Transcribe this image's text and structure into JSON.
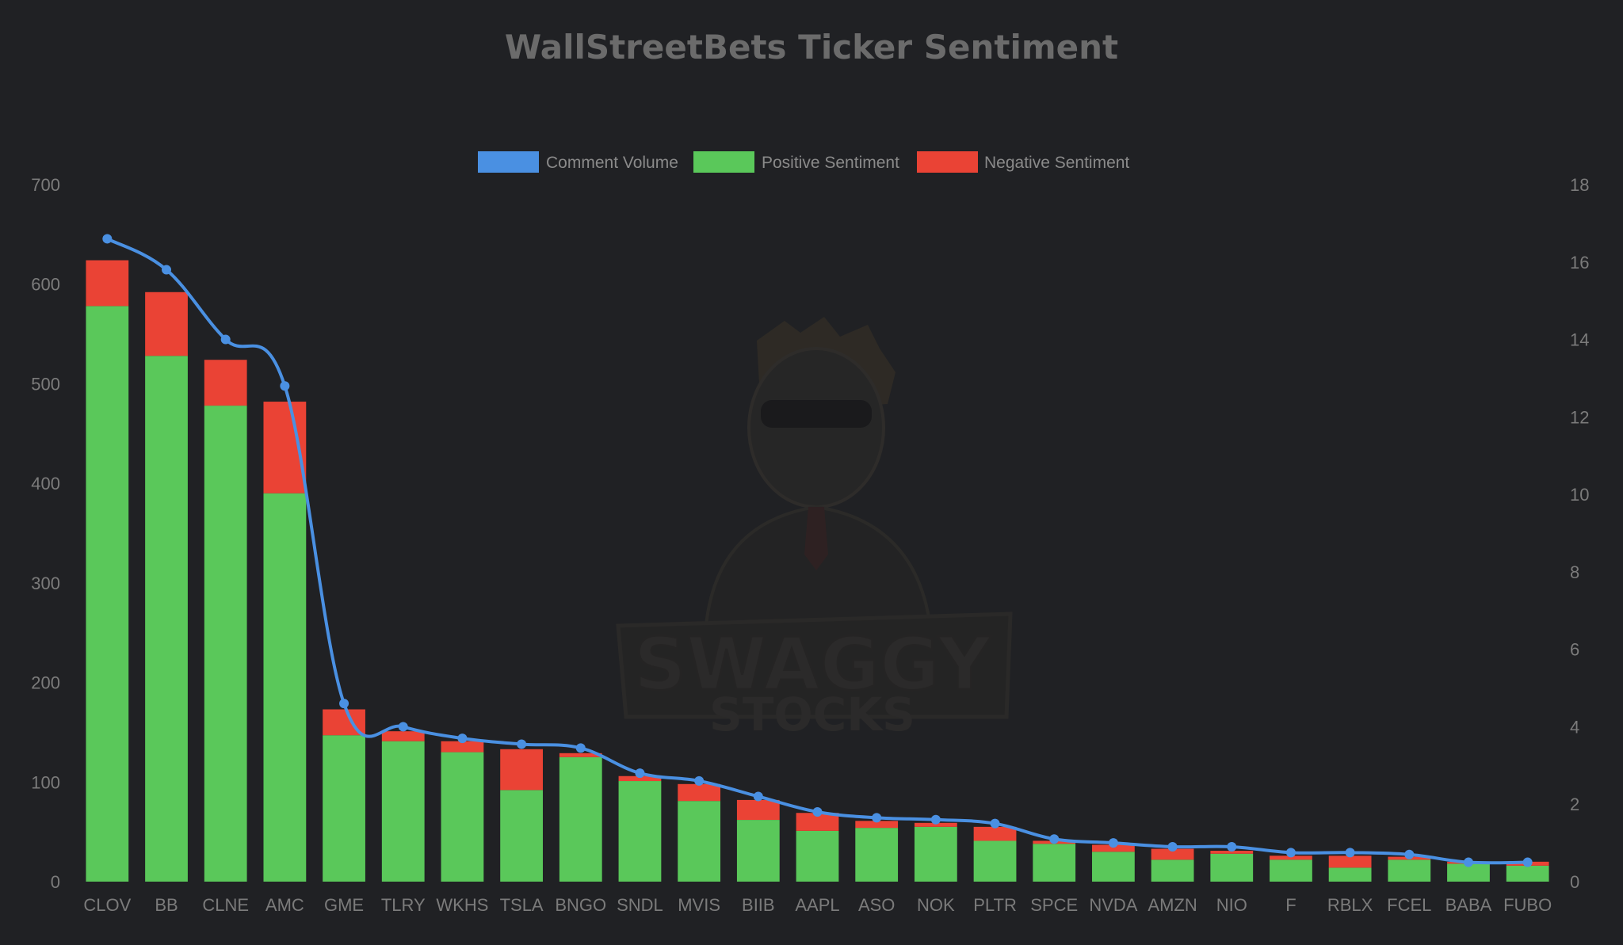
{
  "chart_data": {
    "type": "bar",
    "title": "WallStreetBets Ticker Sentiment",
    "categories": [
      "CLOV",
      "BB",
      "CLNE",
      "AMC",
      "GME",
      "TLRY",
      "WKHS",
      "TSLA",
      "BNGO",
      "SNDL",
      "MVIS",
      "BIIB",
      "AAPL",
      "ASO",
      "NOK",
      "PLTR",
      "SPCE",
      "NVDA",
      "AMZN",
      "NIO",
      "F",
      "RBLX",
      "FCEL",
      "BABA",
      "FUBO"
    ],
    "stacked": true,
    "series": [
      {
        "name": "Positive Sentiment",
        "axis": "left",
        "color": "#5ac85a",
        "values": [
          578,
          528,
          478,
          390,
          147,
          141,
          130,
          92,
          125,
          101,
          81,
          62,
          51,
          54,
          55,
          41,
          38,
          30,
          22,
          28,
          22,
          14,
          22,
          18,
          16
        ]
      },
      {
        "name": "Negative Sentiment",
        "axis": "left",
        "color": "#ea4335",
        "values": [
          46,
          64,
          46,
          92,
          26,
          10,
          11,
          41,
          4,
          5,
          17,
          20,
          18,
          7,
          4,
          14,
          3,
          7,
          11,
          3,
          4,
          12,
          3,
          2,
          4
        ]
      },
      {
        "name": "Comment Volume",
        "type": "line",
        "axis": "right",
        "color": "#4a90e2",
        "values": [
          16.6,
          15.8,
          14.0,
          12.8,
          4.6,
          4.0,
          3.7,
          3.55,
          3.45,
          2.8,
          2.6,
          2.2,
          1.8,
          1.65,
          1.6,
          1.5,
          1.1,
          1.0,
          0.9,
          0.9,
          0.75,
          0.75,
          0.7,
          0.5,
          0.5
        ]
      }
    ],
    "y_left": {
      "min": 0,
      "max": 700,
      "ticks": [
        0,
        100,
        200,
        300,
        400,
        500,
        600,
        700
      ]
    },
    "y_right": {
      "min": 0,
      "max": 18,
      "ticks": [
        0,
        2,
        4,
        6,
        8,
        10,
        12,
        14,
        16,
        18
      ]
    },
    "legend": {
      "position": "top-center",
      "items": [
        {
          "label": "Comment Volume",
          "color": "#4a90e2"
        },
        {
          "label": "Positive Sentiment",
          "color": "#5ac85a"
        },
        {
          "label": "Negative Sentiment",
          "color": "#ea4335"
        }
      ]
    },
    "grid": false
  },
  "watermark": {
    "line1": "SWAGGY",
    "line2": "STOCKS"
  }
}
